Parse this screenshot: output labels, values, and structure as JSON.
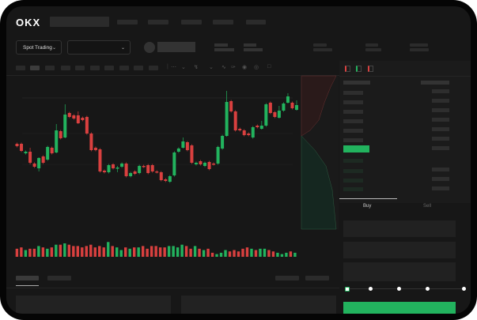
{
  "header": {
    "logo": "OKX"
  },
  "market": {
    "type_select": "Spot Trading",
    "pair_select": ""
  },
  "trade": {
    "tabs": [
      "Buy",
      "Sell"
    ],
    "active_tab": "Buy"
  },
  "colors": {
    "up": "#22b35e",
    "down": "#d9403f",
    "accent": "#22b35e",
    "background": "#171717"
  },
  "icons": [
    "chevron-down-icon",
    "candle-type-icon",
    "indicator-icon",
    "line-tool-icon",
    "ruler-icon",
    "camera-icon",
    "settings-icon",
    "fullscreen-icon",
    "orderbook-both-icon",
    "orderbook-bids-icon",
    "orderbook-asks-icon"
  ],
  "slider": {
    "value_percent": 0,
    "stops": [
      0,
      25,
      50,
      75,
      100
    ]
  },
  "chart_data": {
    "type": "candlestick",
    "candles": [
      [
        58,
        55
      ],
      [
        58,
        49
      ],
      [
        46,
        48
      ],
      [
        48,
        34,
        53,
        32
      ],
      [
        33,
        29
      ],
      [
        27,
        40,
        41,
        23
      ],
      [
        42,
        34
      ],
      [
        38,
        54
      ],
      [
        53,
        46
      ],
      [
        47,
        75,
        83,
        46
      ],
      [
        74,
        65
      ],
      [
        66,
        95,
        108,
        65
      ],
      [
        97,
        92
      ],
      [
        94,
        90
      ],
      [
        94,
        84,
        99,
        83
      ],
      [
        91,
        88
      ],
      [
        92,
        71
      ],
      [
        71,
        50
      ],
      [
        53,
        50
      ],
      [
        51,
        23
      ],
      [
        24,
        22
      ],
      [
        22,
        31
      ],
      [
        32,
        27
      ],
      [
        27,
        28,
        30,
        22
      ],
      [
        29,
        33
      ],
      [
        33,
        17
      ],
      [
        17,
        21
      ],
      [
        23,
        20
      ],
      [
        21,
        30
      ],
      [
        30,
        29
      ],
      [
        31,
        21
      ],
      [
        31,
        23
      ],
      [
        23,
        22
      ],
      [
        22,
        12
      ],
      [
        13,
        11
      ],
      [
        10,
        17
      ],
      [
        18,
        47
      ],
      [
        48,
        52
      ],
      [
        53,
        61,
        66,
        52
      ],
      [
        60,
        50
      ],
      [
        56,
        34
      ],
      [
        32,
        34
      ],
      [
        36,
        32
      ],
      [
        30,
        34
      ],
      [
        35,
        26
      ],
      [
        33,
        32
      ],
      [
        33,
        54
      ],
      [
        52,
        68
      ],
      [
        68,
        111,
        125,
        67
      ],
      [
        112,
        99
      ],
      [
        99,
        75
      ],
      [
        77,
        75
      ],
      [
        75,
        69
      ],
      [
        71,
        69
      ],
      [
        66,
        79
      ],
      [
        81,
        79
      ],
      [
        77,
        81,
        87,
        76
      ],
      [
        81,
        108
      ],
      [
        110,
        97
      ],
      [
        98,
        92
      ],
      [
        91,
        100,
        106,
        90
      ],
      [
        100,
        109
      ],
      [
        110,
        118,
        122,
        109
      ],
      [
        110,
        103
      ],
      [
        101,
        107,
        113,
        100
      ]
    ],
    "volumes": [
      6,
      7,
      5,
      6,
      6,
      8,
      7,
      6,
      7,
      9,
      9,
      10,
      9,
      8,
      8,
      7,
      8,
      9,
      7,
      8,
      7,
      11,
      8,
      7,
      5,
      7,
      6,
      7,
      7,
      8,
      6,
      8,
      8,
      7,
      7,
      8,
      8,
      7,
      9,
      8,
      6,
      8,
      6,
      5,
      6,
      3,
      2,
      3,
      5,
      4,
      5,
      4,
      6,
      7,
      6,
      5,
      6,
      6,
      5,
      4,
      3,
      2,
      3,
      4,
      3
    ]
  }
}
